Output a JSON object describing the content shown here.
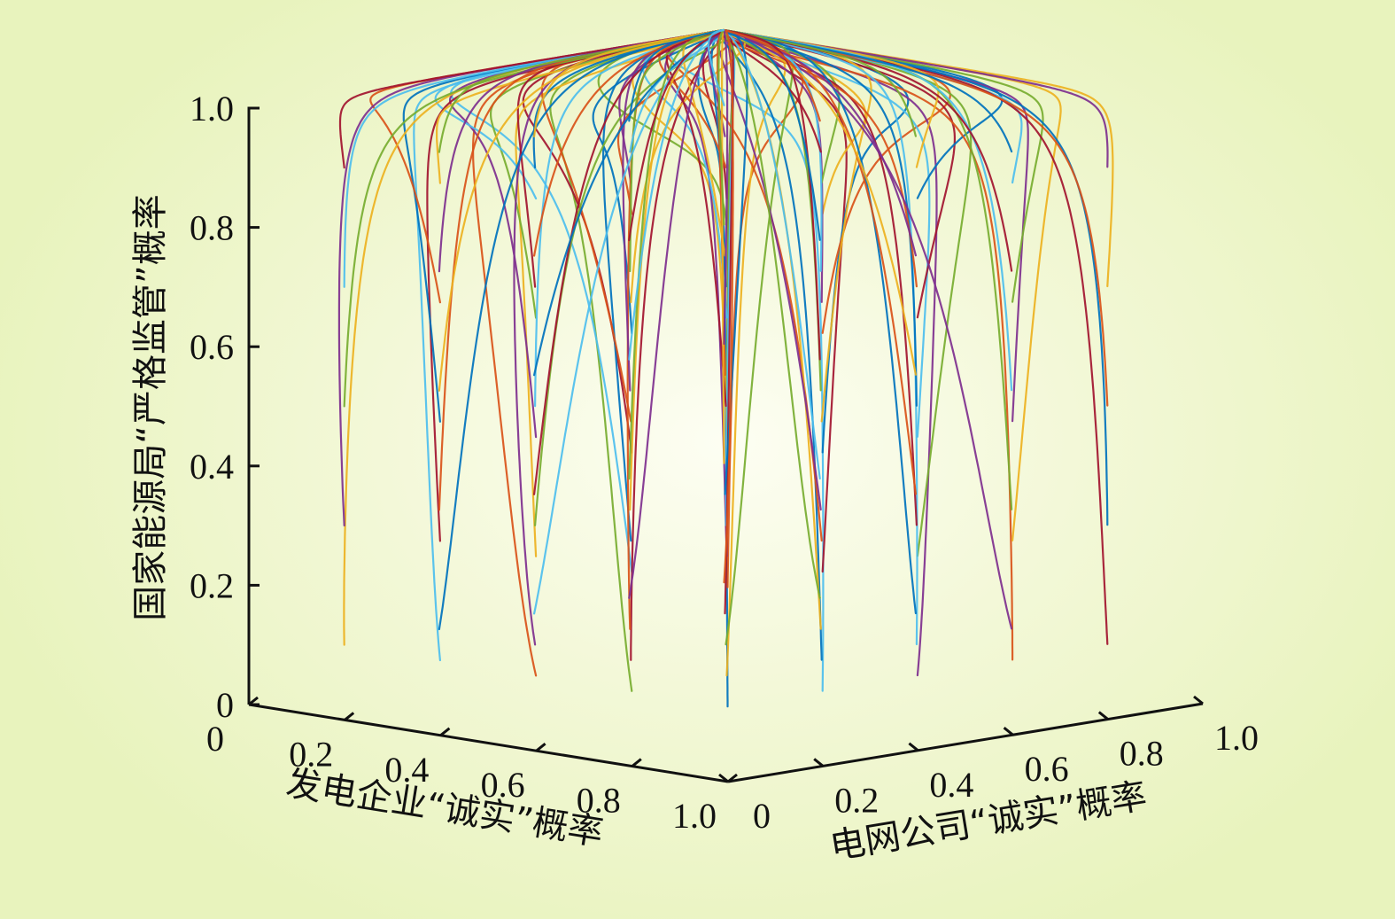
{
  "chart_data": {
    "type": "line",
    "projection": "3d",
    "x_axis": {
      "label": "发电企业“诚实”概率",
      "ticks": [
        0,
        0.2,
        0.4,
        0.6,
        0.8,
        1.0
      ],
      "tick_labels": [
        "0",
        "0.2",
        "0.4",
        "0.6",
        "0.8",
        "1.0"
      ],
      "range": [
        0,
        1
      ]
    },
    "y_axis": {
      "label": "电网公司“诚实”概率",
      "ticks": [
        0,
        0.2,
        0.4,
        0.6,
        0.8,
        1.0
      ],
      "tick_labels": [
        "0",
        "0.2",
        "0.4",
        "0.6",
        "0.8",
        "1.0"
      ],
      "range": [
        0,
        1
      ]
    },
    "z_axis": {
      "label": "国家能源局“严格监管”概率",
      "ticks": [
        0,
        0.2,
        0.4,
        0.6,
        0.8,
        1.0
      ],
      "tick_labels": [
        "0",
        "0.2",
        "0.4",
        "0.6",
        "0.8",
        "1.0"
      ],
      "range": [
        0,
        1
      ]
    },
    "initial_x_values": [
      0.1,
      0.3,
      0.5,
      0.7,
      0.9
    ],
    "initial_y_values": [
      0.1,
      0.3,
      0.5,
      0.7,
      0.9
    ],
    "initial_z_values": [
      0.1,
      0.3,
      0.5,
      0.7,
      0.9
    ],
    "converges_to": [
      1.0,
      1.0,
      1.0
    ],
    "series_colors": [
      "#0072bd",
      "#d95319",
      "#edb120",
      "#7e2f8e",
      "#77ac30",
      "#4dbeee",
      "#a2142f"
    ],
    "grid": false
  }
}
